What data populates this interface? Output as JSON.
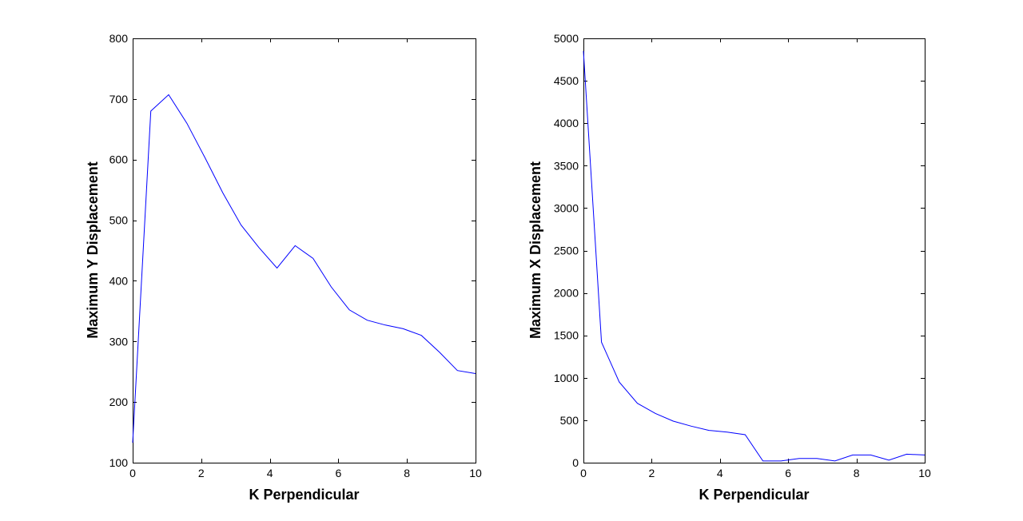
{
  "colors": {
    "series": "#0000ff",
    "axes": "#000000",
    "background": "#ffffff"
  },
  "chart_data": [
    {
      "type": "line",
      "title": "",
      "xlabel": "K Perpendicular",
      "ylabel": "Maximum Y Displacement",
      "xlim": [
        0,
        10
      ],
      "ylim": [
        100,
        800
      ],
      "xticks": [
        0,
        2,
        4,
        6,
        8,
        10
      ],
      "yticks": [
        100,
        200,
        300,
        400,
        500,
        600,
        700,
        800
      ],
      "grid": false,
      "series": [
        {
          "x": [
            0,
            0.53,
            1.05,
            1.58,
            2.11,
            2.63,
            3.16,
            3.68,
            4.21,
            4.74,
            5.26,
            5.79,
            6.32,
            6.84,
            7.37,
            7.89,
            8.42,
            8.95,
            9.47,
            10
          ],
          "y": [
            133,
            680,
            707,
            660,
            603,
            545,
            492,
            455,
            421,
            458,
            437,
            390,
            352,
            335,
            327,
            321,
            310,
            282,
            252,
            247
          ]
        }
      ]
    },
    {
      "type": "line",
      "title": "",
      "xlabel": "K Perpendicular",
      "ylabel": "Maximum X Displacement",
      "xlim": [
        0,
        10
      ],
      "ylim": [
        0,
        5000
      ],
      "xticks": [
        0,
        2,
        4,
        6,
        8,
        10
      ],
      "yticks": [
        0,
        500,
        1000,
        1500,
        2000,
        2500,
        3000,
        3500,
        4000,
        4500,
        5000
      ],
      "grid": false,
      "series": [
        {
          "x": [
            0,
            0.53,
            1.05,
            1.58,
            2.11,
            2.63,
            3.16,
            3.68,
            4.21,
            4.74,
            5.26,
            5.79,
            6.32,
            6.84,
            7.37,
            7.89,
            8.42,
            8.95,
            9.47,
            10
          ],
          "y": [
            4850,
            1420,
            950,
            700,
            580,
            490,
            430,
            380,
            360,
            330,
            20,
            20,
            50,
            50,
            20,
            90,
            90,
            30,
            100,
            90
          ]
        }
      ]
    }
  ]
}
